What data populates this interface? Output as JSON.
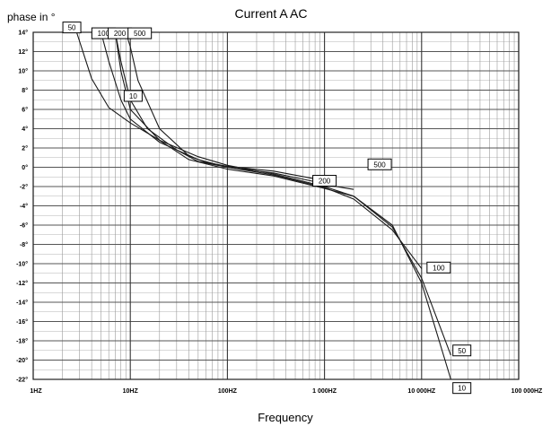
{
  "chart_data": {
    "type": "line",
    "title": "Current A AC",
    "xlabel": "Frequency",
    "ylabel": "phase in °",
    "x_scale": "log",
    "xlim": [
      1,
      100000
    ],
    "ylim": [
      -22,
      14
    ],
    "grid": true,
    "x_tick_labels": [
      "1HZ",
      "10HZ",
      "100HZ",
      "1 000HZ",
      "10 000HZ",
      "100 000HZ"
    ],
    "y_ticks": [
      14,
      12,
      10,
      8,
      6,
      4,
      2,
      0,
      -2,
      -4,
      -6,
      -8,
      -10,
      -12,
      -14,
      -16,
      -18,
      -20,
      -22
    ],
    "y_tick_labels": [
      "14°",
      "12°",
      "10°",
      "8°",
      "6°",
      "4°",
      "2°",
      "0°",
      "-2°",
      "-4°",
      "-6°",
      "-8°",
      "-10°",
      "-12°",
      "-14°",
      "-16°",
      "-18°",
      "-20°",
      "-22°"
    ],
    "series": [
      {
        "name": "10",
        "x": [
          7,
          8,
          10,
          20,
          40,
          100,
          300,
          1000,
          2000,
          5000,
          10000,
          20000
        ],
        "y": [
          14,
          10,
          6,
          2.8,
          0.8,
          -0.2,
          -0.9,
          -2.2,
          -3,
          -6,
          -12,
          -22
        ]
      },
      {
        "name": "50",
        "x": [
          2.8,
          4,
          6,
          10,
          20,
          50,
          100,
          300,
          1000,
          2000,
          5000,
          10000,
          20000
        ],
        "y": [
          14,
          9.2,
          6.2,
          4.6,
          2.8,
          1.1,
          0.2,
          -0.7,
          -2,
          -3,
          -6.2,
          -11.5,
          -19.5
        ]
      },
      {
        "name": "100",
        "x": [
          5,
          6,
          8,
          10,
          20,
          50,
          100,
          300,
          1000,
          2000,
          5000,
          10000
        ],
        "y": [
          14,
          11,
          7,
          5,
          2.6,
          0.8,
          0,
          -0.8,
          -2.1,
          -3.3,
          -6.5,
          -10.5
        ]
      },
      {
        "name": "200",
        "x": [
          7,
          8,
          10,
          15,
          30,
          50,
          100,
          300,
          800,
          1000
        ],
        "y": [
          14,
          11,
          7,
          4,
          1.8,
          0.6,
          0,
          -0.6,
          -1.5,
          -2
        ]
      },
      {
        "name": "500",
        "x": [
          9,
          10,
          12,
          20,
          40,
          60,
          100,
          300,
          800,
          1000,
          2000
        ],
        "y": [
          14,
          12.5,
          9,
          4,
          1.2,
          0.5,
          0.1,
          -0.4,
          -1.2,
          -1.8,
          -2.3
        ]
      }
    ],
    "labels": [
      {
        "text": "50",
        "x": 2.5,
        "y": 14.5
      },
      {
        "text": "100",
        "x": 5.3,
        "y": 13.9
      },
      {
        "text": "200",
        "x": 7.8,
        "y": 13.9
      },
      {
        "text": "500",
        "x": 12.5,
        "y": 13.9
      },
      {
        "text": "10",
        "x": 10.7,
        "y": 7.4
      },
      {
        "text": "200",
        "x": 1000,
        "y": -1.4
      },
      {
        "text": "500",
        "x": 3700,
        "y": 0.3
      },
      {
        "text": "100",
        "x": 15000,
        "y": -10.4
      },
      {
        "text": "50",
        "x": 26000,
        "y": -19
      },
      {
        "text": "10",
        "x": 26000,
        "y": -22.9
      }
    ]
  }
}
